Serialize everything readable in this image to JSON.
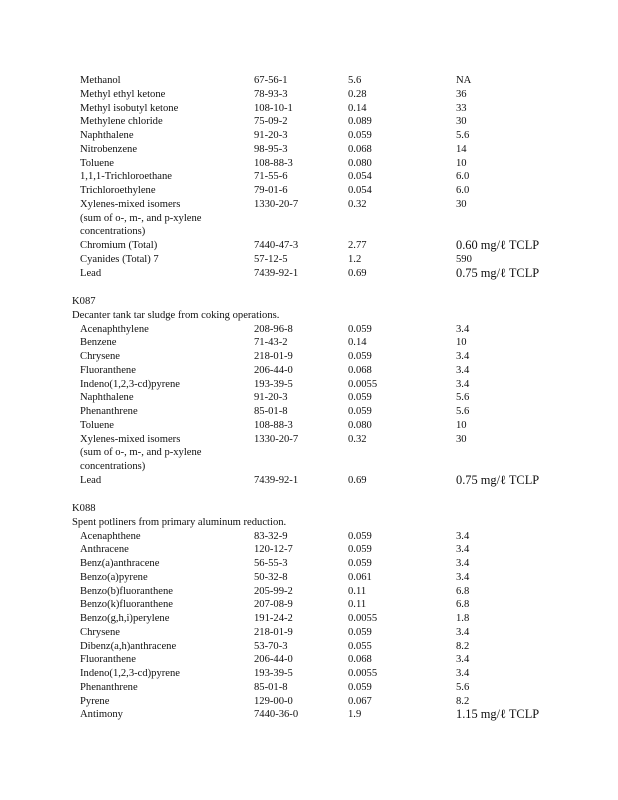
{
  "sections": [
    {
      "id": "",
      "description": "",
      "rows": [
        {
          "name": "Methanol",
          "cas": "67-56-1",
          "ww": "5.6",
          "nww": "NA"
        },
        {
          "name": "Methyl ethyl ketone",
          "cas": "78-93-3",
          "ww": "0.28",
          "nww": "36"
        },
        {
          "name": "Methyl isobutyl ketone",
          "cas": "108-10-1",
          "ww": "0.14",
          "nww": "33"
        },
        {
          "name": "Methylene chloride",
          "cas": "75-09-2",
          "ww": "0.089",
          "nww": "30"
        },
        {
          "name": "Naphthalene",
          "cas": "91-20-3",
          "ww": "0.059",
          "nww": "5.6"
        },
        {
          "name": "Nitrobenzene",
          "cas": "98-95-3",
          "ww": "0.068",
          "nww": "14"
        },
        {
          "name": "Toluene",
          "cas": "108-88-3",
          "ww": "0.080",
          "nww": "10"
        },
        {
          "name": "1,1,1-Trichloroethane",
          "cas": "71-55-6",
          "ww": "0.054",
          "nww": "6.0"
        },
        {
          "name": "Trichloroethylene",
          "cas": "79-01-6",
          "ww": "0.054",
          "nww": "6.0"
        },
        {
          "name": "Xylenes-mixed isomers",
          "cas": "1330-20-7",
          "ww": "0.32",
          "nww": "30"
        },
        {
          "name": "(sum of o-, m-, and p-xylene",
          "cas": "",
          "ww": "",
          "nww": ""
        },
        {
          "name": "concentrations)",
          "cas": "",
          "ww": "",
          "nww": ""
        },
        {
          "name": "Chromium (Total)",
          "cas": "7440-47-3",
          "ww": "2.77",
          "nww": "0.60 mg/ℓ TCLP",
          "big": true
        },
        {
          "name": "Cyanides (Total) 7",
          "cas": "57-12-5",
          "ww": "1.2",
          "nww": "590"
        },
        {
          "name": "Lead",
          "cas": "7439-92-1",
          "ww": "0.69",
          "nww": "0.75 mg/ℓ TCLP",
          "big": true
        }
      ]
    },
    {
      "id": "K087",
      "description": "Decanter tank tar sludge from coking operations.",
      "rows": [
        {
          "name": "Acenaphthylene",
          "cas": "208-96-8",
          "ww": "0.059",
          "nww": "3.4"
        },
        {
          "name": "Benzene",
          "cas": "71-43-2",
          "ww": "0.14",
          "nww": "10"
        },
        {
          "name": "Chrysene",
          "cas": "218-01-9",
          "ww": "0.059",
          "nww": "3.4"
        },
        {
          "name": "Fluoranthene",
          "cas": "206-44-0",
          "ww": "0.068",
          "nww": "3.4"
        },
        {
          "name": "Indeno(1,2,3-cd)pyrene",
          "cas": "193-39-5",
          "ww": "0.0055",
          "nww": "3.4"
        },
        {
          "name": "Naphthalene",
          "cas": "91-20-3",
          "ww": "0.059",
          "nww": "5.6"
        },
        {
          "name": "Phenanthrene",
          "cas": "85-01-8",
          "ww": "0.059",
          "nww": "5.6"
        },
        {
          "name": "Toluene",
          "cas": "108-88-3",
          "ww": "0.080",
          "nww": "10"
        },
        {
          "name": "Xylenes-mixed isomers",
          "cas": "1330-20-7",
          "ww": "0.32",
          "nww": "30"
        },
        {
          "name": "(sum of o-, m-, and p-xylene",
          "cas": "",
          "ww": "",
          "nww": ""
        },
        {
          "name": "concentrations)",
          "cas": "",
          "ww": "",
          "nww": ""
        },
        {
          "name": "Lead",
          "cas": "7439-92-1",
          "ww": "0.69",
          "nww": "0.75 mg/ℓ TCLP",
          "big": true
        }
      ]
    },
    {
      "id": "K088",
      "description": "Spent potliners from primary aluminum reduction.",
      "rows": [
        {
          "name": "Acenaphthene",
          "cas": "83-32-9",
          "ww": "0.059",
          "nww": "3.4"
        },
        {
          "name": "Anthracene",
          "cas": "120-12-7",
          "ww": "0.059",
          "nww": "3.4"
        },
        {
          "name": "Benz(a)anthracene",
          "cas": "56-55-3",
          "ww": "0.059",
          "nww": "3.4"
        },
        {
          "name": "Benzo(a)pyrene",
          "cas": "50-32-8",
          "ww": "0.061",
          "nww": "3.4"
        },
        {
          "name": "Benzo(b)fluoranthene",
          "cas": "205-99-2",
          "ww": "0.11",
          "nww": "6.8"
        },
        {
          "name": "Benzo(k)fluoranthene",
          "cas": "207-08-9",
          "ww": "0.11",
          "nww": "6.8"
        },
        {
          "name": "Benzo(g,h,i)perylene",
          "cas": "191-24-2",
          "ww": "0.0055",
          "nww": "1.8"
        },
        {
          "name": "Chrysene",
          "cas": "218-01-9",
          "ww": "0.059",
          "nww": "3.4"
        },
        {
          "name": "Dibenz(a,h)anthracene",
          "cas": "53-70-3",
          "ww": "0.055",
          "nww": "8.2"
        },
        {
          "name": "Fluoranthene",
          "cas": "206-44-0",
          "ww": "0.068",
          "nww": "3.4"
        },
        {
          "name": "Indeno(1,2,3-cd)pyrene",
          "cas": "193-39-5",
          "ww": "0.0055",
          "nww": "3.4"
        },
        {
          "name": "Phenanthrene",
          "cas": "85-01-8",
          "ww": "0.059",
          "nww": "5.6"
        },
        {
          "name": "Pyrene",
          "cas": "129-00-0",
          "ww": "0.067",
          "nww": "8.2"
        },
        {
          "name": "Antimony",
          "cas": "7440-36-0",
          "ww": "1.9",
          "nww": "1.15 mg/ℓ TCLP",
          "big": true
        }
      ]
    }
  ]
}
